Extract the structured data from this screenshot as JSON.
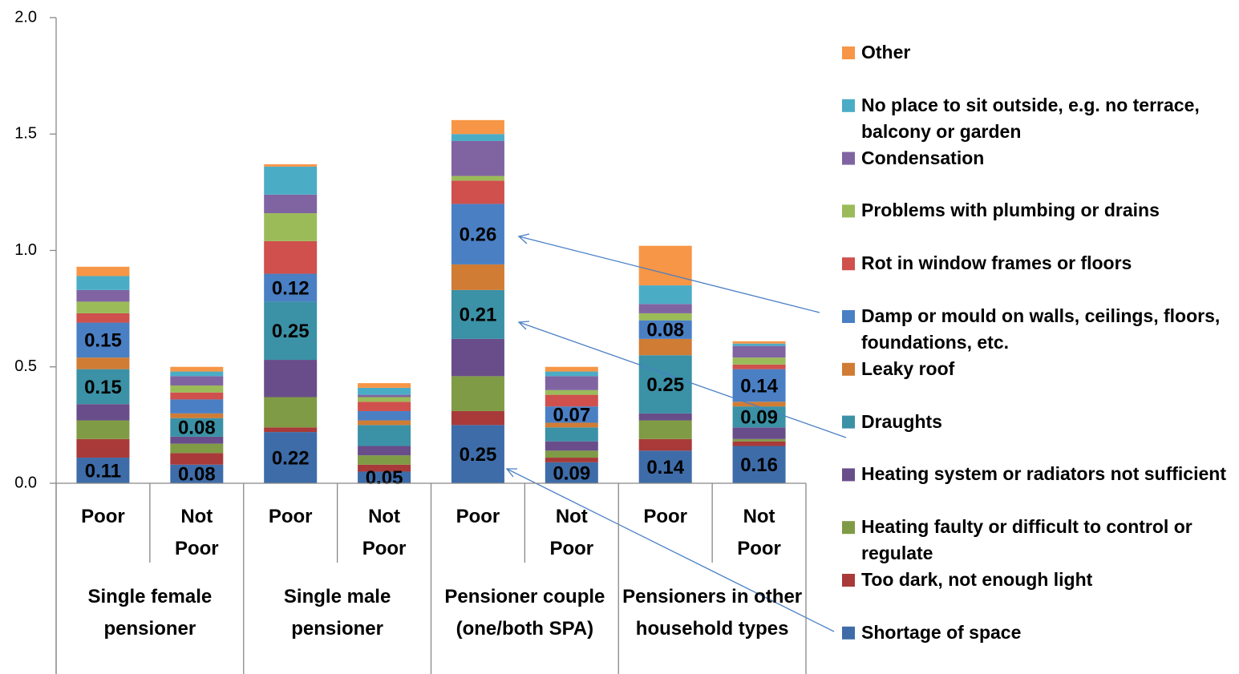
{
  "chart_data": {
    "type": "stacked_bar",
    "categories": [
      "Poor",
      "Not Poor",
      "Poor",
      "Not Poor",
      "Poor",
      "Not Poor",
      "Poor",
      "Not Poor"
    ],
    "groups": [
      "Single female pensioner",
      "Single male pensioner",
      "Pensioner couple (one/both SPA)",
      "Pensioners in other household types"
    ],
    "ylim": [
      0,
      2
    ],
    "yticks": [
      {
        "value": 0,
        "label": "0.0"
      },
      {
        "value": 0.5,
        "label": "0.5"
      },
      {
        "value": 1,
        "label": "1.0"
      },
      {
        "value": 1.5,
        "label": "1.5"
      },
      {
        "value": 2,
        "label": "2.0"
      }
    ],
    "series": [
      {
        "name": "Shortage of space",
        "color": "#3e6ca8",
        "values": [
          0.11,
          0.08,
          0.22,
          0.05,
          0.25,
          0.09,
          0.14,
          0.16
        ],
        "value_labels": [
          "0.11",
          "0.08",
          "0.22",
          "0.05",
          "0.25",
          "0.09",
          "0.14",
          "0.16"
        ]
      },
      {
        "name": "Too dark, not enough light",
        "color": "#a83a3a",
        "values": [
          0.08,
          0.05,
          0.02,
          0.03,
          0.06,
          0.02,
          0.05,
          0.02
        ]
      },
      {
        "name": "Heating faulty or difficult to control or regulate",
        "color": "#7f9b45",
        "values": [
          0.08,
          0.04,
          0.13,
          0.04,
          0.15,
          0.03,
          0.08,
          0.01
        ]
      },
      {
        "name": "Heating system or radiators not sufficient",
        "color": "#694d8a",
        "values": [
          0.07,
          0.03,
          0.16,
          0.04,
          0.16,
          0.04,
          0.03,
          0.05
        ]
      },
      {
        "name": "Draughts",
        "color": "#3b91a6",
        "values": [
          0.15,
          0.08,
          0.25,
          0.09,
          0.21,
          0.06,
          0.25,
          0.09
        ],
        "value_labels": [
          "0.15",
          "0.08",
          "0.25",
          null,
          "0.21",
          null,
          "0.25",
          "0.09"
        ]
      },
      {
        "name": "Leaky roof",
        "color": "#d07c35",
        "values": [
          0.05,
          0.02,
          0,
          0.02,
          0.11,
          0.02,
          0.07,
          0.02
        ]
      },
      {
        "name": "Damp or mould on walls, ceilings, floors, foundations, etc.",
        "color": "#4a7fc4",
        "values": [
          0.15,
          0.06,
          0.12,
          0.04,
          0.26,
          0.07,
          0.08,
          0.14
        ],
        "value_labels": [
          "0.15",
          null,
          "0.12",
          null,
          "0.26",
          "0.07",
          "0.08",
          "0.14"
        ]
      },
      {
        "name": "Rot in window frames or floors",
        "color": "#cf504d",
        "values": [
          0.04,
          0.03,
          0.14,
          0.04,
          0.1,
          0.05,
          0,
          0.02
        ]
      },
      {
        "name": "Problems with plumbing or drains",
        "color": "#9bbb59",
        "values": [
          0.05,
          0.03,
          0.12,
          0.02,
          0.02,
          0.02,
          0.03,
          0.03
        ]
      },
      {
        "name": "Condensation",
        "color": "#8064a2",
        "values": [
          0.05,
          0.04,
          0.08,
          0.01,
          0.15,
          0.06,
          0.04,
          0.05
        ]
      },
      {
        "name": "No place to sit outside, e.g. no terrace, balcony or garden",
        "color": "#4bacc6",
        "values": [
          0.06,
          0.02,
          0.12,
          0.03,
          0.03,
          0.02,
          0.08,
          0.01
        ]
      },
      {
        "name": "Other",
        "color": "#f79646",
        "values": [
          0.04,
          0.02,
          0.01,
          0.02,
          0.06,
          0.02,
          0.17,
          0.01
        ]
      }
    ]
  }
}
